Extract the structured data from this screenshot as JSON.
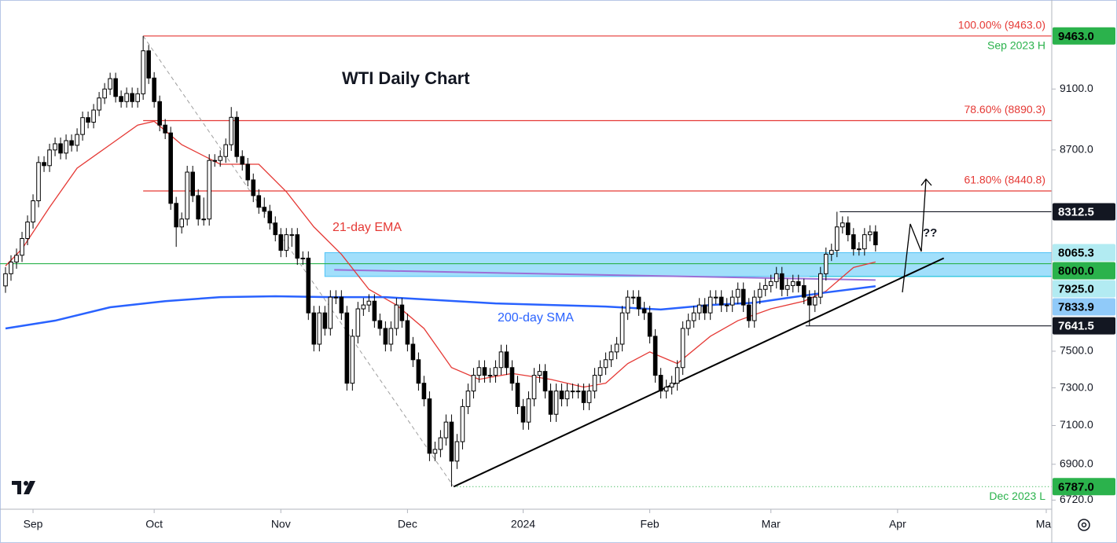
{
  "chart_data": {
    "type": "candlestick",
    "title": "WTI Daily Chart",
    "log_scale": true,
    "xlim": [
      -1,
      190
    ],
    "ylim": [
      6675,
      9695
    ],
    "xticks": [
      {
        "value": 5,
        "label": "Sep"
      },
      {
        "value": 27,
        "label": "Oct"
      },
      {
        "value": 50,
        "label": "Nov"
      },
      {
        "value": 73,
        "label": "Dec"
      },
      {
        "value": 94,
        "label": "2024"
      },
      {
        "value": 117,
        "label": "Feb"
      },
      {
        "value": 139,
        "label": "Mar"
      },
      {
        "value": 162,
        "label": "Apr"
      },
      {
        "value": 189,
        "label": "May"
      }
    ],
    "yticks": [
      {
        "value": 6720,
        "label": "6720.0"
      },
      {
        "value": 6900,
        "label": "6900.0"
      },
      {
        "value": 7100,
        "label": "7100.0"
      },
      {
        "value": 7300,
        "label": "7300.0"
      },
      {
        "value": 7500,
        "label": "7500.0"
      },
      {
        "value": 8700,
        "label": "8700.0"
      },
      {
        "value": 9100,
        "label": "9100.0"
      }
    ],
    "up_color": "#ffffff",
    "down_color": "#000000",
    "candles": [
      [
        7870,
        7980,
        7830,
        7941
      ],
      [
        7941,
        8050,
        7900,
        8010
      ],
      [
        8010,
        8090,
        7970,
        8050
      ],
      [
        8050,
        8190,
        8010,
        8150
      ],
      [
        8150,
        8290,
        8110,
        8250
      ],
      [
        8250,
        8420,
        8210,
        8380
      ],
      [
        8380,
        8660,
        8340,
        8620
      ],
      [
        8620,
        8660,
        8560,
        8600
      ],
      [
        8600,
        8740,
        8560,
        8700
      ],
      [
        8700,
        8780,
        8660,
        8740
      ],
      [
        8740,
        8780,
        8640,
        8680
      ],
      [
        8680,
        8800,
        8640,
        8760
      ],
      [
        8760,
        8800,
        8690,
        8730
      ],
      [
        8730,
        8840,
        8690,
        8800
      ],
      [
        8800,
        8950,
        8760,
        8910
      ],
      [
        8910,
        8950,
        8840,
        8880
      ],
      [
        8880,
        9000,
        8840,
        8960
      ],
      [
        8960,
        9080,
        8920,
        9040
      ],
      [
        9040,
        9140,
        9000,
        9100
      ],
      [
        9100,
        9210,
        9060,
        9170
      ],
      [
        9170,
        9210,
        9010,
        9050
      ],
      [
        9050,
        9090,
        8976,
        9016
      ],
      [
        9016,
        9110,
        8976,
        9070
      ],
      [
        9070,
        9110,
        8976,
        9016
      ],
      [
        9016,
        9108,
        8976,
        9068
      ],
      [
        9068,
        9463,
        9028,
        9360
      ],
      [
        9360,
        9400,
        9134,
        9174
      ],
      [
        9174,
        9214,
        8976,
        9016
      ],
      [
        9016,
        9056,
        8821,
        8861
      ],
      [
        8861,
        8901,
        8770,
        8810
      ],
      [
        8810,
        8850,
        8324,
        8364
      ],
      [
        8364,
        8404,
        8100,
        8220
      ],
      [
        8220,
        8308,
        8180,
        8268
      ],
      [
        8268,
        8599,
        8228,
        8559
      ],
      [
        8559,
        8599,
        8372,
        8412
      ],
      [
        8412,
        8452,
        8228,
        8268
      ],
      [
        8268,
        8400,
        8228,
        8268
      ],
      [
        8268,
        8673,
        8228,
        8633
      ],
      [
        8633,
        8673,
        8593,
        8633
      ],
      [
        8633,
        8698,
        8593,
        8658
      ],
      [
        8658,
        8774,
        8618,
        8734
      ],
      [
        8734,
        8980,
        8694,
        8912
      ],
      [
        8912,
        8952,
        8618,
        8658
      ],
      [
        8658,
        8698,
        8569,
        8609
      ],
      [
        8609,
        8649,
        8470,
        8510
      ],
      [
        8510,
        8550,
        8372,
        8412
      ],
      [
        8412,
        8452,
        8300,
        8340
      ],
      [
        8340,
        8400,
        8275,
        8315
      ],
      [
        8315,
        8355,
        8204,
        8244
      ],
      [
        8244,
        8284,
        8133,
        8173
      ],
      [
        8173,
        8213,
        8039,
        8079
      ],
      [
        8079,
        8213,
        8039,
        8173
      ],
      [
        8173,
        8213,
        8100,
        8173
      ],
      [
        8173,
        8213,
        7993,
        8033
      ],
      [
        8033,
        8073,
        7993,
        8033
      ],
      [
        8033,
        8073,
        7675,
        7715
      ],
      [
        7715,
        7755,
        7499,
        7539
      ],
      [
        7539,
        7755,
        7499,
        7715
      ],
      [
        7715,
        7755,
        7587,
        7627
      ],
      [
        7627,
        7845,
        7587,
        7805
      ],
      [
        7805,
        7845,
        7765,
        7805
      ],
      [
        7805,
        7845,
        7675,
        7715
      ],
      [
        7715,
        7755,
        7285,
        7325
      ],
      [
        7325,
        7623,
        7285,
        7583
      ],
      [
        7583,
        7778,
        7543,
        7738
      ],
      [
        7738,
        7800,
        7698,
        7760
      ],
      [
        7760,
        7822,
        7720,
        7782
      ],
      [
        7782,
        7822,
        7631,
        7671
      ],
      [
        7671,
        7711,
        7587,
        7627
      ],
      [
        7627,
        7667,
        7499,
        7539
      ],
      [
        7539,
        7667,
        7499,
        7627
      ],
      [
        7627,
        7800,
        7587,
        7760
      ],
      [
        7760,
        7800,
        7631,
        7671
      ],
      [
        7671,
        7711,
        7499,
        7539
      ],
      [
        7539,
        7579,
        7413,
        7453
      ],
      [
        7453,
        7493,
        7285,
        7325
      ],
      [
        7325,
        7365,
        7201,
        7241
      ],
      [
        7241,
        7281,
        6916,
        6956
      ],
      [
        6956,
        7016,
        6916,
        6976
      ],
      [
        6976,
        7076,
        6936,
        7036
      ],
      [
        7036,
        7158,
        6996,
        7118
      ],
      [
        7118,
        7158,
        6787,
        6916
      ],
      [
        6916,
        7056,
        6876,
        7016
      ],
      [
        7016,
        7240,
        6976,
        7200
      ],
      [
        7200,
        7323,
        7160,
        7283
      ],
      [
        7283,
        7408,
        7243,
        7368
      ],
      [
        7368,
        7450,
        7328,
        7410
      ],
      [
        7410,
        7450,
        7328,
        7368
      ],
      [
        7368,
        7408,
        7328,
        7368
      ],
      [
        7368,
        7450,
        7328,
        7410
      ],
      [
        7410,
        7536,
        7370,
        7496
      ],
      [
        7496,
        7536,
        7370,
        7410
      ],
      [
        7410,
        7450,
        7285,
        7325
      ],
      [
        7325,
        7365,
        7160,
        7200
      ],
      [
        7200,
        7240,
        7078,
        7118
      ],
      [
        7118,
        7281,
        7078,
        7241
      ],
      [
        7241,
        7408,
        7201,
        7368
      ],
      [
        7368,
        7429,
        7328,
        7389
      ],
      [
        7389,
        7429,
        7243,
        7283
      ],
      [
        7283,
        7323,
        7119,
        7159
      ],
      [
        7159,
        7323,
        7119,
        7283
      ],
      [
        7283,
        7323,
        7201,
        7241
      ],
      [
        7241,
        7323,
        7201,
        7283
      ],
      [
        7283,
        7323,
        7243,
        7283
      ],
      [
        7283,
        7323,
        7243,
        7283
      ],
      [
        7283,
        7323,
        7181,
        7221
      ],
      [
        7221,
        7323,
        7181,
        7283
      ],
      [
        7283,
        7408,
        7243,
        7368
      ],
      [
        7368,
        7450,
        7328,
        7410
      ],
      [
        7410,
        7493,
        7370,
        7453
      ],
      [
        7453,
        7536,
        7413,
        7496
      ],
      [
        7496,
        7579,
        7456,
        7539
      ],
      [
        7539,
        7755,
        7499,
        7715
      ],
      [
        7715,
        7845,
        7675,
        7805
      ],
      [
        7805,
        7845,
        7765,
        7805
      ],
      [
        7805,
        7845,
        7698,
        7738
      ],
      [
        7738,
        7778,
        7675,
        7715
      ],
      [
        7715,
        7755,
        7543,
        7583
      ],
      [
        7583,
        7623,
        7328,
        7368
      ],
      [
        7368,
        7408,
        7243,
        7283
      ],
      [
        7283,
        7344,
        7243,
        7304
      ],
      [
        7304,
        7365,
        7264,
        7325
      ],
      [
        7325,
        7450,
        7285,
        7410
      ],
      [
        7410,
        7667,
        7370,
        7627
      ],
      [
        7627,
        7711,
        7587,
        7671
      ],
      [
        7671,
        7755,
        7631,
        7715
      ],
      [
        7715,
        7800,
        7675,
        7760
      ],
      [
        7760,
        7800,
        7675,
        7715
      ],
      [
        7715,
        7845,
        7675,
        7805
      ],
      [
        7805,
        7845,
        7765,
        7805
      ],
      [
        7805,
        7845,
        7720,
        7760
      ],
      [
        7760,
        7800,
        7720,
        7760
      ],
      [
        7760,
        7845,
        7720,
        7805
      ],
      [
        7805,
        7890,
        7765,
        7850
      ],
      [
        7850,
        7890,
        7720,
        7760
      ],
      [
        7760,
        7800,
        7631,
        7671
      ],
      [
        7671,
        7845,
        7631,
        7805
      ],
      [
        7805,
        7890,
        7765,
        7850
      ],
      [
        7850,
        7912,
        7810,
        7872
      ],
      [
        7872,
        7935,
        7832,
        7895
      ],
      [
        7895,
        7981,
        7855,
        7941
      ],
      [
        7941,
        7981,
        7810,
        7850
      ],
      [
        7850,
        7912,
        7810,
        7872
      ],
      [
        7872,
        7935,
        7832,
        7895
      ],
      [
        7895,
        7935,
        7832,
        7872
      ],
      [
        7872,
        7912,
        7765,
        7805
      ],
      [
        7805,
        7845,
        7641.5,
        7760
      ],
      [
        7760,
        7845,
        7720,
        7805
      ],
      [
        7805,
        7981,
        7765,
        7941
      ],
      [
        7941,
        8096,
        7901,
        8056
      ],
      [
        8056,
        8119,
        8016,
        8079
      ],
      [
        8079,
        8312.5,
        8039,
        8220
      ],
      [
        8220,
        8284,
        8180,
        8244
      ],
      [
        8244,
        8284,
        8133,
        8173
      ],
      [
        8173,
        8213,
        8048,
        8088
      ],
      [
        8088,
        8128,
        8048,
        8088
      ],
      [
        8088,
        8213,
        8048,
        8173
      ],
      [
        8173,
        8230,
        8133,
        8190
      ],
      [
        8190,
        8230,
        8072,
        8112
      ]
    ],
    "lines": [
      {
        "name": "21-day EMA",
        "color": "#e53935",
        "x": [
          0,
          3,
          8,
          13,
          19,
          24,
          27,
          32,
          39,
          46,
          51,
          56,
          61,
          66,
          71,
          76,
          81,
          86,
          92,
          99,
          105,
          109,
          113,
          117,
          122,
          128,
          133,
          139,
          145,
          149,
          154,
          158
        ],
        "values": [
          7987,
          8088,
          8340,
          8584,
          8734,
          8861,
          8886,
          8734,
          8609,
          8609,
          8436,
          8220,
          8056,
          7850,
          7760,
          7627,
          7410,
          7346,
          7378,
          7346,
          7304,
          7325,
          7432,
          7496,
          7432,
          7583,
          7671,
          7738,
          7782,
          7840,
          7978,
          8010
        ]
      },
      {
        "name": "200-day SMA",
        "color": "#2962ff",
        "x": [
          0,
          9,
          19,
          29,
          39,
          49,
          59,
          69,
          79,
          89,
          99,
          109,
          119,
          128,
          136,
          143,
          149,
          158
        ],
        "values": [
          7627,
          7671,
          7747,
          7782,
          7805,
          7810,
          7805,
          7805,
          7787,
          7769,
          7760,
          7751,
          7734,
          7760,
          7773,
          7805,
          7832,
          7868
        ]
      }
    ],
    "trendlines": [
      {
        "x": [
          81.4,
          170.4
        ],
        "values": [
          6787,
          8033
        ],
        "color": "#000000",
        "dashed": false
      },
      {
        "x": [
          59.7,
          158
        ],
        "values": [
          7964,
          7904
        ],
        "color": "#9c6fd6",
        "dashed": false
      },
      {
        "x": [
          25,
          81.4
        ],
        "values": [
          9463,
          6787
        ],
        "color": "#9e9e9e",
        "dashed": true
      }
    ],
    "zone": {
      "x": 58,
      "top": 8065.3,
      "bottom": 7925,
      "color": "#81d4fa"
    },
    "levels": [
      {
        "value": 9463,
        "label": "9463.0",
        "box": "#2bb24c",
        "text_color": "#000000",
        "line": "#e53935",
        "x": 25,
        "fib": "100.00% (9463.0)",
        "note": "Sep 2023 H"
      },
      {
        "value": 8890.3,
        "line": "#e53935",
        "x": 25,
        "fib": "78.60% (8890.3)"
      },
      {
        "value": 8440.8,
        "line": "#e53935",
        "x": 25,
        "fib": "61.80% (8440.8)"
      },
      {
        "value": 8312.5,
        "label": "8312.5",
        "box": "#131722",
        "text_color": "#ffffff",
        "line": "#131722",
        "x": 151.5
      },
      {
        "value": 8065.3,
        "label": "8065.3",
        "box": "#b2ebf2",
        "text_color": "#000000"
      },
      {
        "value": 8000,
        "label": "8000.0",
        "box": "#2bb24c",
        "text_color": "#000000",
        "line": "#2bb24c",
        "x": -1
      },
      {
        "value": 7925,
        "label": "7925.0",
        "box": "#b2ebf2",
        "text_color": "#000000",
        "line": "#26c6da",
        "x": 146
      },
      {
        "value": 7833.9,
        "label": "7833.9",
        "box": "#90caf9",
        "text_color": "#000000"
      },
      {
        "value": 7641.5,
        "label": "7641.5",
        "box": "#131722",
        "text_color": "#ffffff",
        "line": "#131722",
        "x": 145.3
      },
      {
        "value": 6787,
        "label": "6787.0",
        "box": "#2bb24c",
        "text_color": "#000000",
        "line": "#2bb24c",
        "x": 81.4,
        "dotted": true,
        "note": "Dec 2023 L"
      }
    ],
    "projection_label": "??"
  }
}
